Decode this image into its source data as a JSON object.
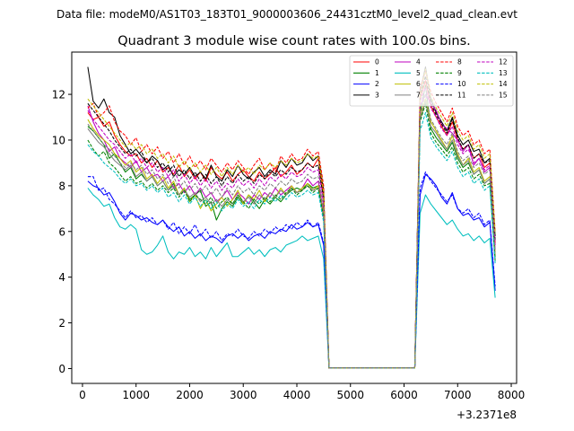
{
  "chart_data": {
    "type": "line",
    "suptitle": "Data file: modeM0/AS1T03_183T01_9000003606_24431cztM0_level2_quad_clean.evt",
    "title": "Quadrant 3 module wise count rates with 100.0s bins.",
    "xlabel": "",
    "ylabel": "",
    "x_offset_label": "+3.2371e8",
    "xlim": [
      -200,
      8100
    ],
    "ylim": [
      -0.65,
      13.85
    ],
    "x_ticks": [
      0,
      1000,
      2000,
      3000,
      4000,
      5000,
      6000,
      7000,
      8000
    ],
    "x_tick_labels": [
      "0",
      "1000",
      "2000",
      "3000",
      "4000",
      "5000",
      "6000",
      "7000",
      "8000"
    ],
    "y_ticks": [
      0,
      2,
      4,
      6,
      8,
      10,
      12
    ],
    "y_tick_labels": [
      "0",
      "2",
      "4",
      "6",
      "8",
      "10",
      "12"
    ],
    "legend_position": "top-right",
    "x": [
      100,
      200,
      300,
      400,
      500,
      600,
      700,
      800,
      900,
      1000,
      1100,
      1200,
      1300,
      1400,
      1500,
      1600,
      1700,
      1800,
      1900,
      2000,
      2100,
      2200,
      2300,
      2400,
      2500,
      2600,
      2700,
      2800,
      2900,
      3000,
      3100,
      3200,
      3300,
      3400,
      3500,
      3600,
      3700,
      3800,
      3900,
      4000,
      4100,
      4200,
      4300,
      4400,
      4500,
      4600,
      6200,
      6300,
      6400,
      6500,
      6600,
      6700,
      6800,
      6900,
      7000,
      7100,
      7200,
      7300,
      7400,
      7500,
      7600,
      7700
    ],
    "series": [
      {
        "name": "0",
        "color": "#ff0000",
        "dash": "solid",
        "values": [
          11.2,
          10.9,
          11.0,
          10.6,
          10.8,
          10.2,
          9.8,
          9.5,
          9.3,
          9.4,
          9.0,
          9.2,
          8.8,
          9.1,
          8.6,
          8.8,
          8.5,
          8.9,
          8.4,
          8.7,
          8.3,
          8.6,
          8.2,
          8.8,
          8.5,
          8.3,
          8.6,
          8.2,
          8.5,
          8.7,
          8.4,
          8.2,
          8.6,
          8.3,
          8.5,
          8.8,
          8.4,
          8.6,
          8.9,
          8.5,
          8.7,
          9.0,
          8.8,
          9.2,
          7.5,
          0.02,
          0.02,
          11.8,
          12.6,
          11.5,
          11.0,
          10.6,
          10.2,
          10.8,
          10.0,
          9.6,
          9.8,
          9.2,
          9.4,
          8.8,
          9.0,
          5.5
        ]
      },
      {
        "name": "1",
        "color": "#008000",
        "dash": "solid",
        "values": [
          10.6,
          10.4,
          10.1,
          9.8,
          9.2,
          9.4,
          9.0,
          8.6,
          8.8,
          8.3,
          8.5,
          8.2,
          8.4,
          8.0,
          8.2,
          7.8,
          8.1,
          7.6,
          7.9,
          7.4,
          7.6,
          7.8,
          7.1,
          7.3,
          6.5,
          7.0,
          7.3,
          7.1,
          7.5,
          7.2,
          7.6,
          7.3,
          7.0,
          7.4,
          7.2,
          7.5,
          7.3,
          7.6,
          7.8,
          7.9,
          7.8,
          8.1,
          7.9,
          8.0,
          6.9,
          0.02,
          0.02,
          11.2,
          12.4,
          10.5,
          10.1,
          9.8,
          9.5,
          9.9,
          9.2,
          8.8,
          9.0,
          8.5,
          8.7,
          8.1,
          8.3,
          4.9
        ]
      },
      {
        "name": "2",
        "color": "#0000ff",
        "dash": "solid",
        "values": [
          8.2,
          8.0,
          7.9,
          7.6,
          7.7,
          7.3,
          6.8,
          6.5,
          6.8,
          6.7,
          6.5,
          6.6,
          6.4,
          6.3,
          6.5,
          6.2,
          6.0,
          6.2,
          5.8,
          6.0,
          5.7,
          5.9,
          5.6,
          5.8,
          5.7,
          5.5,
          5.8,
          5.9,
          5.7,
          5.9,
          5.6,
          5.8,
          5.9,
          5.7,
          6.0,
          5.9,
          6.1,
          6.0,
          6.3,
          6.1,
          6.2,
          6.4,
          6.2,
          6.3,
          5.4,
          0.02,
          0.02,
          7.6,
          8.5,
          8.3,
          8.0,
          7.5,
          7.2,
          7.7,
          7.0,
          6.7,
          6.8,
          6.5,
          6.6,
          6.2,
          6.4,
          3.4
        ]
      },
      {
        "name": "3",
        "color": "#000000",
        "dash": "solid",
        "values": [
          13.2,
          11.7,
          11.4,
          11.8,
          11.2,
          11.0,
          10.2,
          9.8,
          9.4,
          9.6,
          9.3,
          9.0,
          9.3,
          9.1,
          8.7,
          8.9,
          8.4,
          8.7,
          8.5,
          8.8,
          8.4,
          8.6,
          8.3,
          8.9,
          8.4,
          8.2,
          8.7,
          8.4,
          8.9,
          8.5,
          8.3,
          8.6,
          8.8,
          8.4,
          8.7,
          8.5,
          9.1,
          8.8,
          9.2,
          8.9,
          9.0,
          9.4,
          9.1,
          9.3,
          7.8,
          0.02,
          0.02,
          12.1,
          13.2,
          11.8,
          11.2,
          10.8,
          10.4,
          11.0,
          10.2,
          9.8,
          10.0,
          9.5,
          9.6,
          9.0,
          9.2,
          5.8
        ]
      },
      {
        "name": "4",
        "color": "#bf00bf",
        "dash": "solid",
        "values": [
          11.5,
          10.8,
          10.3,
          10.0,
          9.5,
          9.7,
          9.2,
          9.0,
          8.8,
          9.1,
          8.6,
          8.8,
          8.4,
          8.5,
          8.2,
          8.4,
          7.9,
          8.1,
          7.7,
          8.0,
          7.6,
          7.9,
          7.5,
          7.7,
          7.3,
          7.5,
          7.8,
          7.4,
          7.7,
          7.5,
          7.2,
          7.6,
          7.4,
          7.7,
          7.5,
          7.9,
          7.6,
          7.8,
          8.0,
          7.7,
          7.9,
          8.3,
          8.0,
          8.2,
          6.8,
          0.02,
          0.02,
          11.5,
          12.0,
          11.6,
          11.3,
          10.7,
          10.5,
          10.3,
          10.0,
          9.5,
          9.8,
          8.9,
          9.2,
          8.6,
          8.8,
          5.2
        ]
      },
      {
        "name": "5",
        "color": "#00bfbf",
        "dash": "solid",
        "values": [
          7.9,
          7.6,
          7.4,
          7.1,
          7.2,
          6.6,
          6.2,
          6.1,
          6.3,
          6.1,
          5.2,
          5.0,
          5.1,
          5.4,
          5.8,
          5.1,
          4.8,
          5.1,
          5.0,
          5.3,
          4.9,
          5.1,
          4.8,
          5.3,
          4.9,
          5.2,
          5.5,
          4.9,
          4.9,
          5.1,
          5.3,
          5.0,
          5.2,
          4.9,
          5.2,
          5.3,
          5.1,
          5.4,
          5.5,
          5.6,
          5.8,
          5.6,
          5.7,
          5.8,
          4.8,
          0.02,
          0.02,
          6.8,
          7.6,
          7.2,
          6.9,
          6.6,
          6.3,
          6.5,
          6.1,
          5.8,
          5.9,
          5.6,
          5.8,
          5.5,
          5.7,
          3.1
        ]
      },
      {
        "name": "6",
        "color": "#bfbf00",
        "dash": "solid",
        "values": [
          10.9,
          10.5,
          10.2,
          10.0,
          9.8,
          9.4,
          9.2,
          8.9,
          9.1,
          8.6,
          8.8,
          8.3,
          8.5,
          8.1,
          8.4,
          7.9,
          8.2,
          7.6,
          7.9,
          7.3,
          7.6,
          7.0,
          7.4,
          6.9,
          7.2,
          7.5,
          7.1,
          7.4,
          7.8,
          7.2,
          7.6,
          7.4,
          7.8,
          7.3,
          7.7,
          7.5,
          7.9,
          7.6,
          8.0,
          7.7,
          7.9,
          8.1,
          7.8,
          8.0,
          6.7,
          0.02,
          0.02,
          11.0,
          11.8,
          10.8,
          10.4,
          10.0,
          9.6,
          10.2,
          9.4,
          8.9,
          9.2,
          8.6,
          8.8,
          8.2,
          8.4,
          5.0
        ]
      },
      {
        "name": "7",
        "color": "#808080",
        "dash": "solid",
        "values": [
          10.5,
          10.2,
          9.9,
          9.7,
          9.4,
          9.1,
          8.9,
          8.7,
          8.9,
          8.4,
          8.6,
          8.2,
          8.4,
          8.0,
          8.2,
          7.8,
          8.0,
          7.6,
          7.8,
          7.5,
          7.7,
          7.3,
          7.5,
          7.2,
          7.4,
          7.1,
          7.4,
          7.2,
          7.6,
          7.3,
          7.5,
          7.2,
          7.6,
          7.4,
          7.7,
          7.5,
          7.8,
          7.6,
          7.9,
          7.7,
          7.8,
          8.0,
          7.8,
          7.9,
          6.6,
          0.02,
          0.02,
          10.9,
          11.7,
          10.6,
          10.3,
          9.9,
          9.6,
          10.0,
          9.3,
          8.9,
          9.1,
          8.5,
          8.7,
          8.1,
          8.3,
          4.8
        ]
      },
      {
        "name": "8",
        "color": "#ff0000",
        "dash": "dashed",
        "values": [
          11.4,
          11.6,
          11.0,
          11.2,
          11.5,
          10.8,
          10.4,
          10.2,
          9.8,
          10.1,
          9.5,
          9.8,
          9.4,
          9.7,
          9.2,
          9.5,
          9.0,
          9.4,
          8.9,
          9.3,
          8.8,
          9.1,
          8.7,
          9.2,
          8.9,
          8.6,
          9.0,
          8.7,
          9.1,
          8.8,
          8.5,
          8.9,
          9.2,
          8.7,
          9.0,
          8.6,
          9.3,
          9.0,
          9.4,
          9.1,
          9.2,
          9.6,
          9.3,
          9.5,
          8.0,
          0.02,
          0.02,
          12.3,
          13.0,
          12.1,
          11.6,
          11.2,
          10.8,
          11.4,
          10.6,
          10.2,
          10.4,
          9.8,
          10.0,
          9.4,
          9.6,
          6.0
        ]
      },
      {
        "name": "9",
        "color": "#008000",
        "dash": "dashed",
        "values": [
          10.0,
          9.6,
          9.3,
          9.5,
          9.0,
          8.8,
          8.5,
          8.2,
          8.4,
          8.1,
          8.2,
          7.9,
          8.1,
          7.8,
          8.0,
          7.7,
          7.9,
          7.5,
          7.8,
          7.3,
          7.6,
          7.4,
          7.2,
          7.5,
          7.0,
          7.3,
          7.5,
          7.2,
          7.6,
          7.3,
          7.0,
          7.4,
          7.2,
          7.5,
          7.3,
          7.6,
          7.4,
          7.7,
          7.9,
          7.6,
          7.8,
          8.0,
          7.7,
          7.9,
          6.6,
          0.02,
          0.02,
          10.8,
          11.6,
          10.3,
          9.9,
          9.6,
          9.3,
          9.7,
          9.0,
          8.6,
          8.8,
          8.3,
          8.5,
          8.0,
          8.1,
          4.7
        ]
      },
      {
        "name": "10",
        "color": "#0000ff",
        "dash": "dashed",
        "values": [
          8.4,
          8.4,
          7.8,
          7.9,
          7.4,
          7.2,
          6.9,
          6.6,
          6.9,
          6.6,
          6.7,
          6.4,
          6.6,
          6.3,
          6.5,
          6.1,
          6.4,
          5.9,
          6.2,
          5.9,
          6.3,
          5.8,
          6.1,
          5.7,
          6.0,
          5.6,
          5.9,
          5.8,
          6.1,
          5.8,
          5.7,
          6.0,
          5.8,
          6.1,
          5.9,
          6.2,
          6.0,
          6.3,
          6.1,
          6.4,
          6.2,
          6.5,
          6.2,
          6.4,
          5.5,
          0.02,
          0.02,
          7.9,
          8.6,
          8.2,
          7.9,
          7.6,
          7.3,
          7.6,
          7.0,
          6.8,
          7.0,
          6.6,
          6.8,
          6.3,
          6.5,
          3.6
        ]
      },
      {
        "name": "11",
        "color": "#000000",
        "dash": "dashed",
        "values": [
          11.6,
          11.3,
          11.0,
          10.7,
          10.4,
          10.0,
          9.7,
          9.4,
          9.6,
          9.3,
          9.5,
          9.0,
          9.2,
          8.8,
          9.0,
          8.6,
          8.9,
          8.4,
          8.7,
          8.3,
          8.6,
          8.2,
          8.5,
          8.1,
          8.4,
          8.0,
          8.4,
          8.1,
          8.5,
          8.2,
          8.4,
          8.1,
          8.5,
          8.3,
          8.6,
          8.4,
          8.7,
          8.5,
          8.8,
          8.6,
          8.7,
          9.0,
          8.8,
          8.9,
          7.4,
          0.02,
          0.02,
          11.9,
          12.8,
          11.6,
          11.1,
          10.7,
          10.3,
          10.9,
          10.1,
          9.6,
          9.8,
          9.2,
          9.4,
          9.0,
          9.1,
          5.6
        ]
      },
      {
        "name": "12",
        "color": "#bf00bf",
        "dash": "dashed",
        "values": [
          11.3,
          10.9,
          10.6,
          10.3,
          10.0,
          9.8,
          9.5,
          9.2,
          9.4,
          9.0,
          9.2,
          8.8,
          9.0,
          8.6,
          8.8,
          8.4,
          8.7,
          8.2,
          8.5,
          8.1,
          8.4,
          8.0,
          8.3,
          7.9,
          8.2,
          7.8,
          8.1,
          7.9,
          8.3,
          8.0,
          8.2,
          7.9,
          8.3,
          8.0,
          8.4,
          8.2,
          8.5,
          8.3,
          8.6,
          8.4,
          8.5,
          8.8,
          8.6,
          8.7,
          7.2,
          0.02,
          0.02,
          11.7,
          12.3,
          11.4,
          11.0,
          10.5,
          10.2,
          10.6,
          9.8,
          9.4,
          9.6,
          9.0,
          9.2,
          8.7,
          8.9,
          5.4
        ]
      },
      {
        "name": "13",
        "color": "#00bfbf",
        "dash": "dashed",
        "values": [
          9.8,
          9.5,
          9.3,
          9.0,
          8.8,
          8.6,
          8.3,
          8.1,
          8.3,
          8.0,
          8.1,
          7.8,
          8.0,
          7.7,
          7.9,
          7.5,
          7.7,
          7.3,
          7.6,
          7.2,
          7.5,
          7.1,
          7.4,
          7.0,
          7.3,
          6.9,
          7.2,
          7.0,
          7.4,
          7.1,
          7.3,
          7.0,
          7.4,
          7.2,
          7.5,
          7.3,
          7.6,
          7.4,
          7.7,
          7.5,
          7.6,
          7.8,
          7.6,
          7.7,
          6.4,
          0.02,
          0.02,
          10.4,
          11.2,
          10.1,
          9.7,
          9.4,
          9.1,
          9.5,
          8.8,
          8.4,
          8.6,
          8.1,
          8.3,
          7.8,
          8.0,
          4.6
        ]
      },
      {
        "name": "14",
        "color": "#bfbf00",
        "dash": "dashed",
        "values": [
          11.8,
          11.5,
          11.2,
          10.9,
          10.6,
          10.3,
          10.0,
          9.7,
          9.9,
          9.6,
          9.8,
          9.4,
          9.6,
          9.2,
          9.4,
          9.0,
          9.3,
          8.8,
          9.1,
          8.7,
          9.0,
          8.6,
          8.9,
          8.5,
          8.8,
          8.4,
          8.8,
          8.5,
          8.9,
          8.6,
          8.8,
          8.5,
          8.9,
          8.7,
          9.0,
          8.8,
          9.1,
          8.9,
          9.2,
          9.0,
          9.1,
          9.4,
          9.2,
          9.3,
          7.7,
          0.02,
          0.02,
          12.0,
          13.1,
          11.9,
          11.4,
          11.0,
          10.6,
          11.2,
          10.4,
          10.0,
          10.2,
          9.6,
          9.8,
          9.2,
          9.4,
          5.9
        ]
      },
      {
        "name": "15",
        "color": "#808080",
        "dash": "dashed",
        "values": [
          10.7,
          10.4,
          10.1,
          9.8,
          9.6,
          9.3,
          9.0,
          8.8,
          9.0,
          8.7,
          8.9,
          8.5,
          8.7,
          8.3,
          8.5,
          8.1,
          8.4,
          7.9,
          8.2,
          7.8,
          8.1,
          7.7,
          8.0,
          7.6,
          7.9,
          7.5,
          7.9,
          7.6,
          8.0,
          7.7,
          7.9,
          7.6,
          8.0,
          7.8,
          8.1,
          7.9,
          8.2,
          8.0,
          8.3,
          8.1,
          8.2,
          8.5,
          8.3,
          8.4,
          7.0,
          0.02,
          0.02,
          11.1,
          12.0,
          10.9,
          10.5,
          10.1,
          9.8,
          10.3,
          9.5,
          9.1,
          9.3,
          8.8,
          9.0,
          8.5,
          8.7,
          5.1
        ]
      }
    ]
  }
}
